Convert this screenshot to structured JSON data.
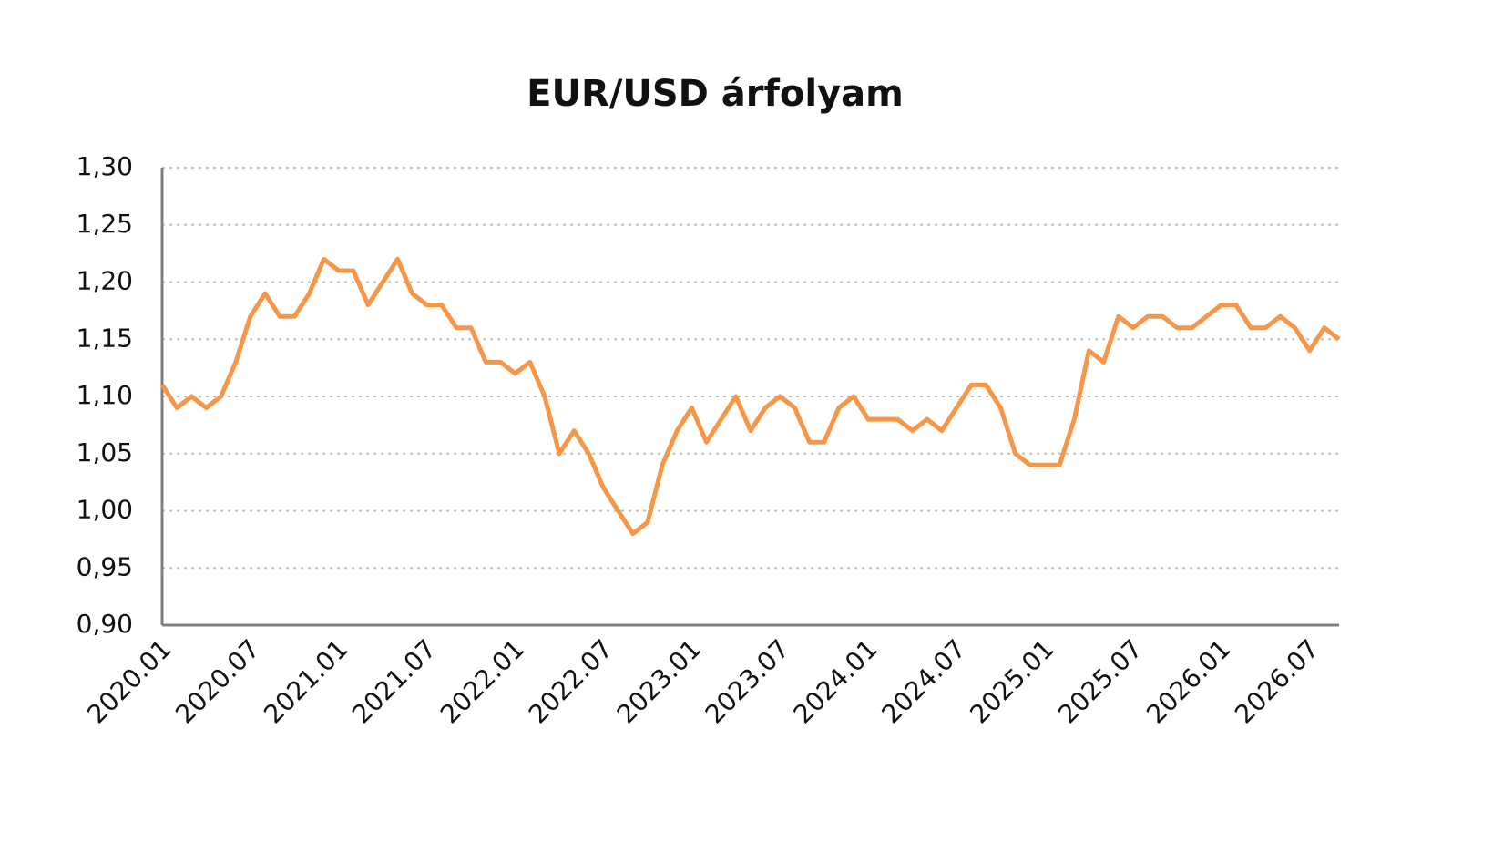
{
  "chart_data": {
    "type": "line",
    "title": "EUR/USD árfolyam",
    "categories": [
      "2020.01",
      null,
      null,
      null,
      null,
      null,
      "2020.07",
      null,
      null,
      null,
      null,
      null,
      "2021.01",
      null,
      null,
      null,
      null,
      null,
      "2021.07",
      null,
      null,
      null,
      null,
      null,
      "2022.01",
      null,
      null,
      null,
      null,
      null,
      "2022.07",
      null,
      null,
      null,
      null,
      null,
      "2023.01",
      null,
      null,
      null,
      null,
      null,
      "2023.07",
      null,
      null,
      null,
      null,
      null,
      "2024.01",
      null,
      null,
      null,
      null,
      null,
      "2024.07",
      null,
      null,
      null,
      null,
      null,
      "2025.01",
      null,
      null,
      null,
      null,
      null,
      "2025.07",
      null,
      null,
      null,
      null,
      null,
      "2026.01",
      null,
      null,
      null,
      null,
      null,
      "2026.07",
      null,
      null
    ],
    "values": [
      1.11,
      1.09,
      1.1,
      1.09,
      1.1,
      1.13,
      1.17,
      1.19,
      1.17,
      1.17,
      1.19,
      1.22,
      1.21,
      1.21,
      1.18,
      1.2,
      1.22,
      1.19,
      1.18,
      1.18,
      1.16,
      1.16,
      1.13,
      1.13,
      1.12,
      1.13,
      1.1,
      1.05,
      1.07,
      1.05,
      1.02,
      1.0,
      0.98,
      0.99,
      1.04,
      1.07,
      1.09,
      1.06,
      1.08,
      1.1,
      1.07,
      1.09,
      1.1,
      1.09,
      1.06,
      1.06,
      1.09,
      1.1,
      1.08,
      1.08,
      1.08,
      1.07,
      1.08,
      1.07,
      1.09,
      1.11,
      1.11,
      1.09,
      1.05,
      1.04,
      1.04,
      1.04,
      1.08,
      1.14,
      1.13,
      1.17,
      1.16,
      1.17,
      1.17,
      1.16,
      1.16,
      1.17,
      1.18,
      1.18,
      1.16,
      1.16,
      1.17,
      1.16,
      1.14,
      1.16,
      1.15
    ],
    "color": "#f79646",
    "ylim": [
      0.9,
      1.3
    ],
    "yticks": [
      {
        "value": 0.9,
        "label": "0,90"
      },
      {
        "value": 0.95,
        "label": "0,95"
      },
      {
        "value": 1.0,
        "label": "1,00"
      },
      {
        "value": 1.05,
        "label": "1,05"
      },
      {
        "value": 1.1,
        "label": "1,10"
      },
      {
        "value": 1.15,
        "label": "1,15"
      },
      {
        "value": 1.2,
        "label": "1,20"
      },
      {
        "value": 1.25,
        "label": "1,25"
      },
      {
        "value": 1.3,
        "label": "1,30"
      }
    ],
    "grid": true
  }
}
